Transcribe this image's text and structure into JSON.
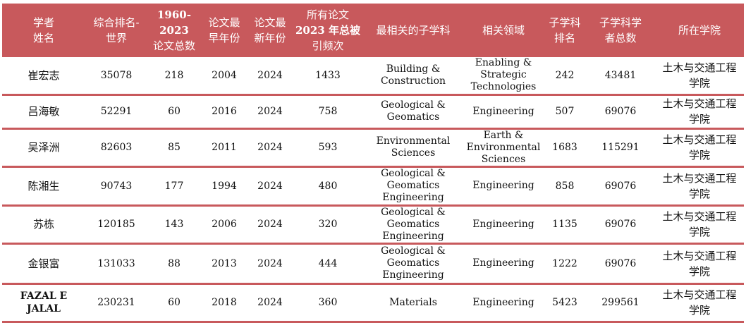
{
  "colors": {
    "header_bg": "#c8595c",
    "header_text": "#ffffff",
    "row_divider": "#c8595c"
  },
  "headers": {
    "name": [
      "学者",
      "姓名"
    ],
    "rank": [
      "综合排名-",
      "世界"
    ],
    "total_papers": [
      "1960-2023",
      "论文总数"
    ],
    "earliest": [
      "论文最",
      "早年份"
    ],
    "latest": [
      "论文最",
      "新年份"
    ],
    "citations": [
      "所有论文",
      "2023 年总被",
      "引频次"
    ],
    "subfield": "最相关的子学科",
    "field": "相关领域",
    "sub_rank": [
      "子学科",
      "排名"
    ],
    "sub_total": [
      "子学科学",
      "者总数"
    ],
    "school": "所在学院"
  },
  "rows": [
    {
      "name": "崔宏志",
      "rank": "35078",
      "total_papers": "218",
      "earliest": "2004",
      "latest": "2024",
      "citations": "1433",
      "subfield": [
        "Building &",
        "Construction"
      ],
      "field": [
        "Enabling &",
        "Strategic",
        "Technologies"
      ],
      "sub_rank": "242",
      "sub_total": "43481",
      "school": [
        "土木与交通工程",
        "学院"
      ]
    },
    {
      "name": "吕海敏",
      "rank": "52291",
      "total_papers": "60",
      "earliest": "2016",
      "latest": "2024",
      "citations": "758",
      "subfield": [
        "Geological &",
        "Geomatics"
      ],
      "field": [
        "Engineering"
      ],
      "sub_rank": "507",
      "sub_total": "69076",
      "school": [
        "土木与交通工程",
        "学院"
      ]
    },
    {
      "name": "吴泽洲",
      "rank": "82603",
      "total_papers": "85",
      "earliest": "2011",
      "latest": "2024",
      "citations": "593",
      "subfield": [
        "Environmental",
        "Sciences"
      ],
      "field": [
        "Earth &",
        "Environmental",
        "Sciences"
      ],
      "sub_rank": "1683",
      "sub_total": "115291",
      "school": [
        "土木与交通工程",
        "学院"
      ]
    },
    {
      "name": "陈湘生",
      "rank": "90743",
      "total_papers": "177",
      "earliest": "1994",
      "latest": "2024",
      "citations": "480",
      "subfield": [
        "Geological &",
        "Geomatics",
        "Engineering"
      ],
      "field": [
        "Engineering"
      ],
      "sub_rank": "858",
      "sub_total": "69076",
      "school": [
        "土木与交通工程",
        "学院"
      ]
    },
    {
      "name": "苏栋",
      "rank": "120185",
      "total_papers": "143",
      "earliest": "2006",
      "latest": "2024",
      "citations": "320",
      "subfield": [
        "Geological &",
        "Geomatics",
        "Engineering"
      ],
      "field": [
        "Engineering"
      ],
      "sub_rank": "1135",
      "sub_total": "69076",
      "school": [
        "土木与交通工程",
        "学院"
      ]
    },
    {
      "name": "金银富",
      "rank": "131033",
      "total_papers": "88",
      "earliest": "2013",
      "latest": "2024",
      "citations": "444",
      "subfield": [
        "Geological &",
        "Geomatics",
        "Engineering"
      ],
      "field": [
        "Engineering"
      ],
      "sub_rank": "1222",
      "sub_total": "69076",
      "school": [
        "土木与交通工程",
        "学院"
      ]
    },
    {
      "name": [
        "FAZAL E",
        "JALAL"
      ],
      "rank": "230231",
      "total_papers": "60",
      "earliest": "2018",
      "latest": "2024",
      "citations": "360",
      "subfield": [
        "Materials"
      ],
      "field": [
        "Engineering"
      ],
      "sub_rank": "5423",
      "sub_total": "299561",
      "school": [
        "土木与交通工程",
        "学院"
      ]
    }
  ]
}
